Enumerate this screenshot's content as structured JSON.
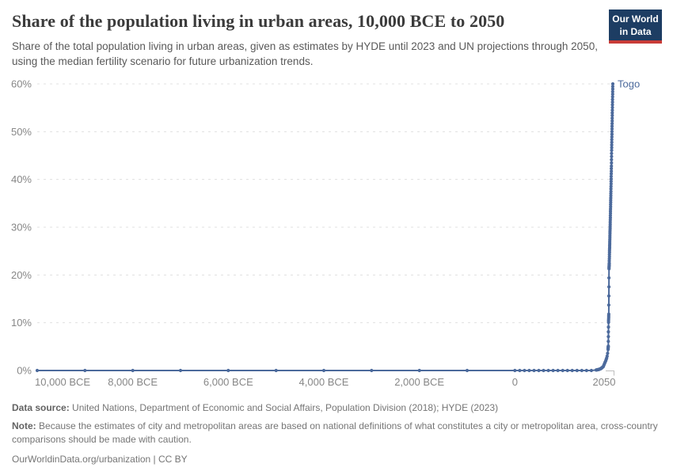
{
  "header": {
    "title": "Share of the population living in urban areas, 10,000 BCE to 2050",
    "subtitle": "Share of the total population living in urban areas, given as estimates by HYDE until 2023 and UN projections through 2050, using the median fertility scenario for future urbanization trends.",
    "logo": {
      "line1": "Our World",
      "line2": "in Data",
      "bg_color": "#1d3d63",
      "accent_color": "#c93c37"
    }
  },
  "chart_data": {
    "type": "line",
    "title": "Share of the population living in urban areas, 10,000 BCE to 2050",
    "entity_label": "Togo",
    "xlim": [
      -10000,
      2050
    ],
    "ylim": [
      0,
      60
    ],
    "grid": "horizontal-dashed",
    "legend_position": "end-of-line-label",
    "line_color": "#4c6a9c",
    "axis_label_color": "#878787",
    "gridline_color": "#e0e0e0",
    "axis_corner_color": "#bdbdbd",
    "x_ticks": [
      {
        "value": -10000,
        "label": "10,000 BCE"
      },
      {
        "value": -8000,
        "label": "8,000 BCE"
      },
      {
        "value": -6000,
        "label": "6,000 BCE"
      },
      {
        "value": -4000,
        "label": "4,000 BCE"
      },
      {
        "value": -2000,
        "label": "2,000 BCE"
      },
      {
        "value": 0,
        "label": "0"
      },
      {
        "value": 2050,
        "label": "2050"
      }
    ],
    "y_ticks": [
      {
        "value": 0,
        "label": "0%"
      },
      {
        "value": 10,
        "label": "10%"
      },
      {
        "value": 20,
        "label": "20%"
      },
      {
        "value": 30,
        "label": "30%"
      },
      {
        "value": 40,
        "label": "40%"
      },
      {
        "value": 50,
        "label": "50%"
      },
      {
        "value": 60,
        "label": "60%"
      }
    ],
    "series": [
      {
        "name": "Togo",
        "points": [
          [
            -10000,
            0
          ],
          [
            -9000,
            0
          ],
          [
            -8000,
            0
          ],
          [
            -7000,
            0
          ],
          [
            -6000,
            0
          ],
          [
            -5000,
            0
          ],
          [
            -4000,
            0
          ],
          [
            -3000,
            0
          ],
          [
            -2000,
            0
          ],
          [
            -1000,
            0
          ],
          [
            0,
            0
          ],
          [
            100,
            0
          ],
          [
            200,
            0
          ],
          [
            300,
            0
          ],
          [
            400,
            0
          ],
          [
            500,
            0
          ],
          [
            600,
            0
          ],
          [
            700,
            0
          ],
          [
            800,
            0
          ],
          [
            900,
            0
          ],
          [
            1000,
            0
          ],
          [
            1100,
            0
          ],
          [
            1200,
            0
          ],
          [
            1300,
            0
          ],
          [
            1400,
            0
          ],
          [
            1500,
            0
          ],
          [
            1600,
            0
          ],
          [
            1700,
            0.1
          ],
          [
            1750,
            0.2
          ],
          [
            1800,
            0.4
          ],
          [
            1850,
            0.8
          ],
          [
            1900,
            2.0
          ],
          [
            1910,
            2.3
          ],
          [
            1920,
            2.6
          ],
          [
            1930,
            3.0
          ],
          [
            1940,
            3.6
          ],
          [
            1950,
            4.4
          ],
          [
            1955,
            5.1
          ],
          [
            1960,
            10.1
          ],
          [
            1965,
            11.8
          ],
          [
            1970,
            21.3
          ],
          [
            1975,
            22.5
          ],
          [
            1980,
            24.7
          ],
          [
            1985,
            26.5
          ],
          [
            1990,
            28.6
          ],
          [
            1995,
            30.6
          ],
          [
            2000,
            32.9
          ],
          [
            2005,
            35.2
          ],
          [
            2010,
            37.5
          ],
          [
            2015,
            40.1
          ],
          [
            2020,
            42.8
          ],
          [
            2023,
            44.8
          ],
          [
            2025,
            46.1
          ],
          [
            2030,
            48.9
          ],
          [
            2035,
            51.7
          ],
          [
            2040,
            54.5
          ],
          [
            2045,
            57.3
          ],
          [
            2050,
            60.0
          ]
        ]
      }
    ]
  },
  "footer": {
    "data_source_label": "Data source:",
    "data_source_text": "United Nations, Department of Economic and Social Affairs, Population Division (2018); HYDE (2023)",
    "note_label": "Note:",
    "note_text": "Because the estimates of city and metropolitan areas are based on national definitions of what constitutes a city or metropolitan area, cross-country comparisons should be made with caution.",
    "license_link": "OurWorldinData.org/urbanization",
    "license_separator": "|",
    "license_cc": "CC BY"
  }
}
